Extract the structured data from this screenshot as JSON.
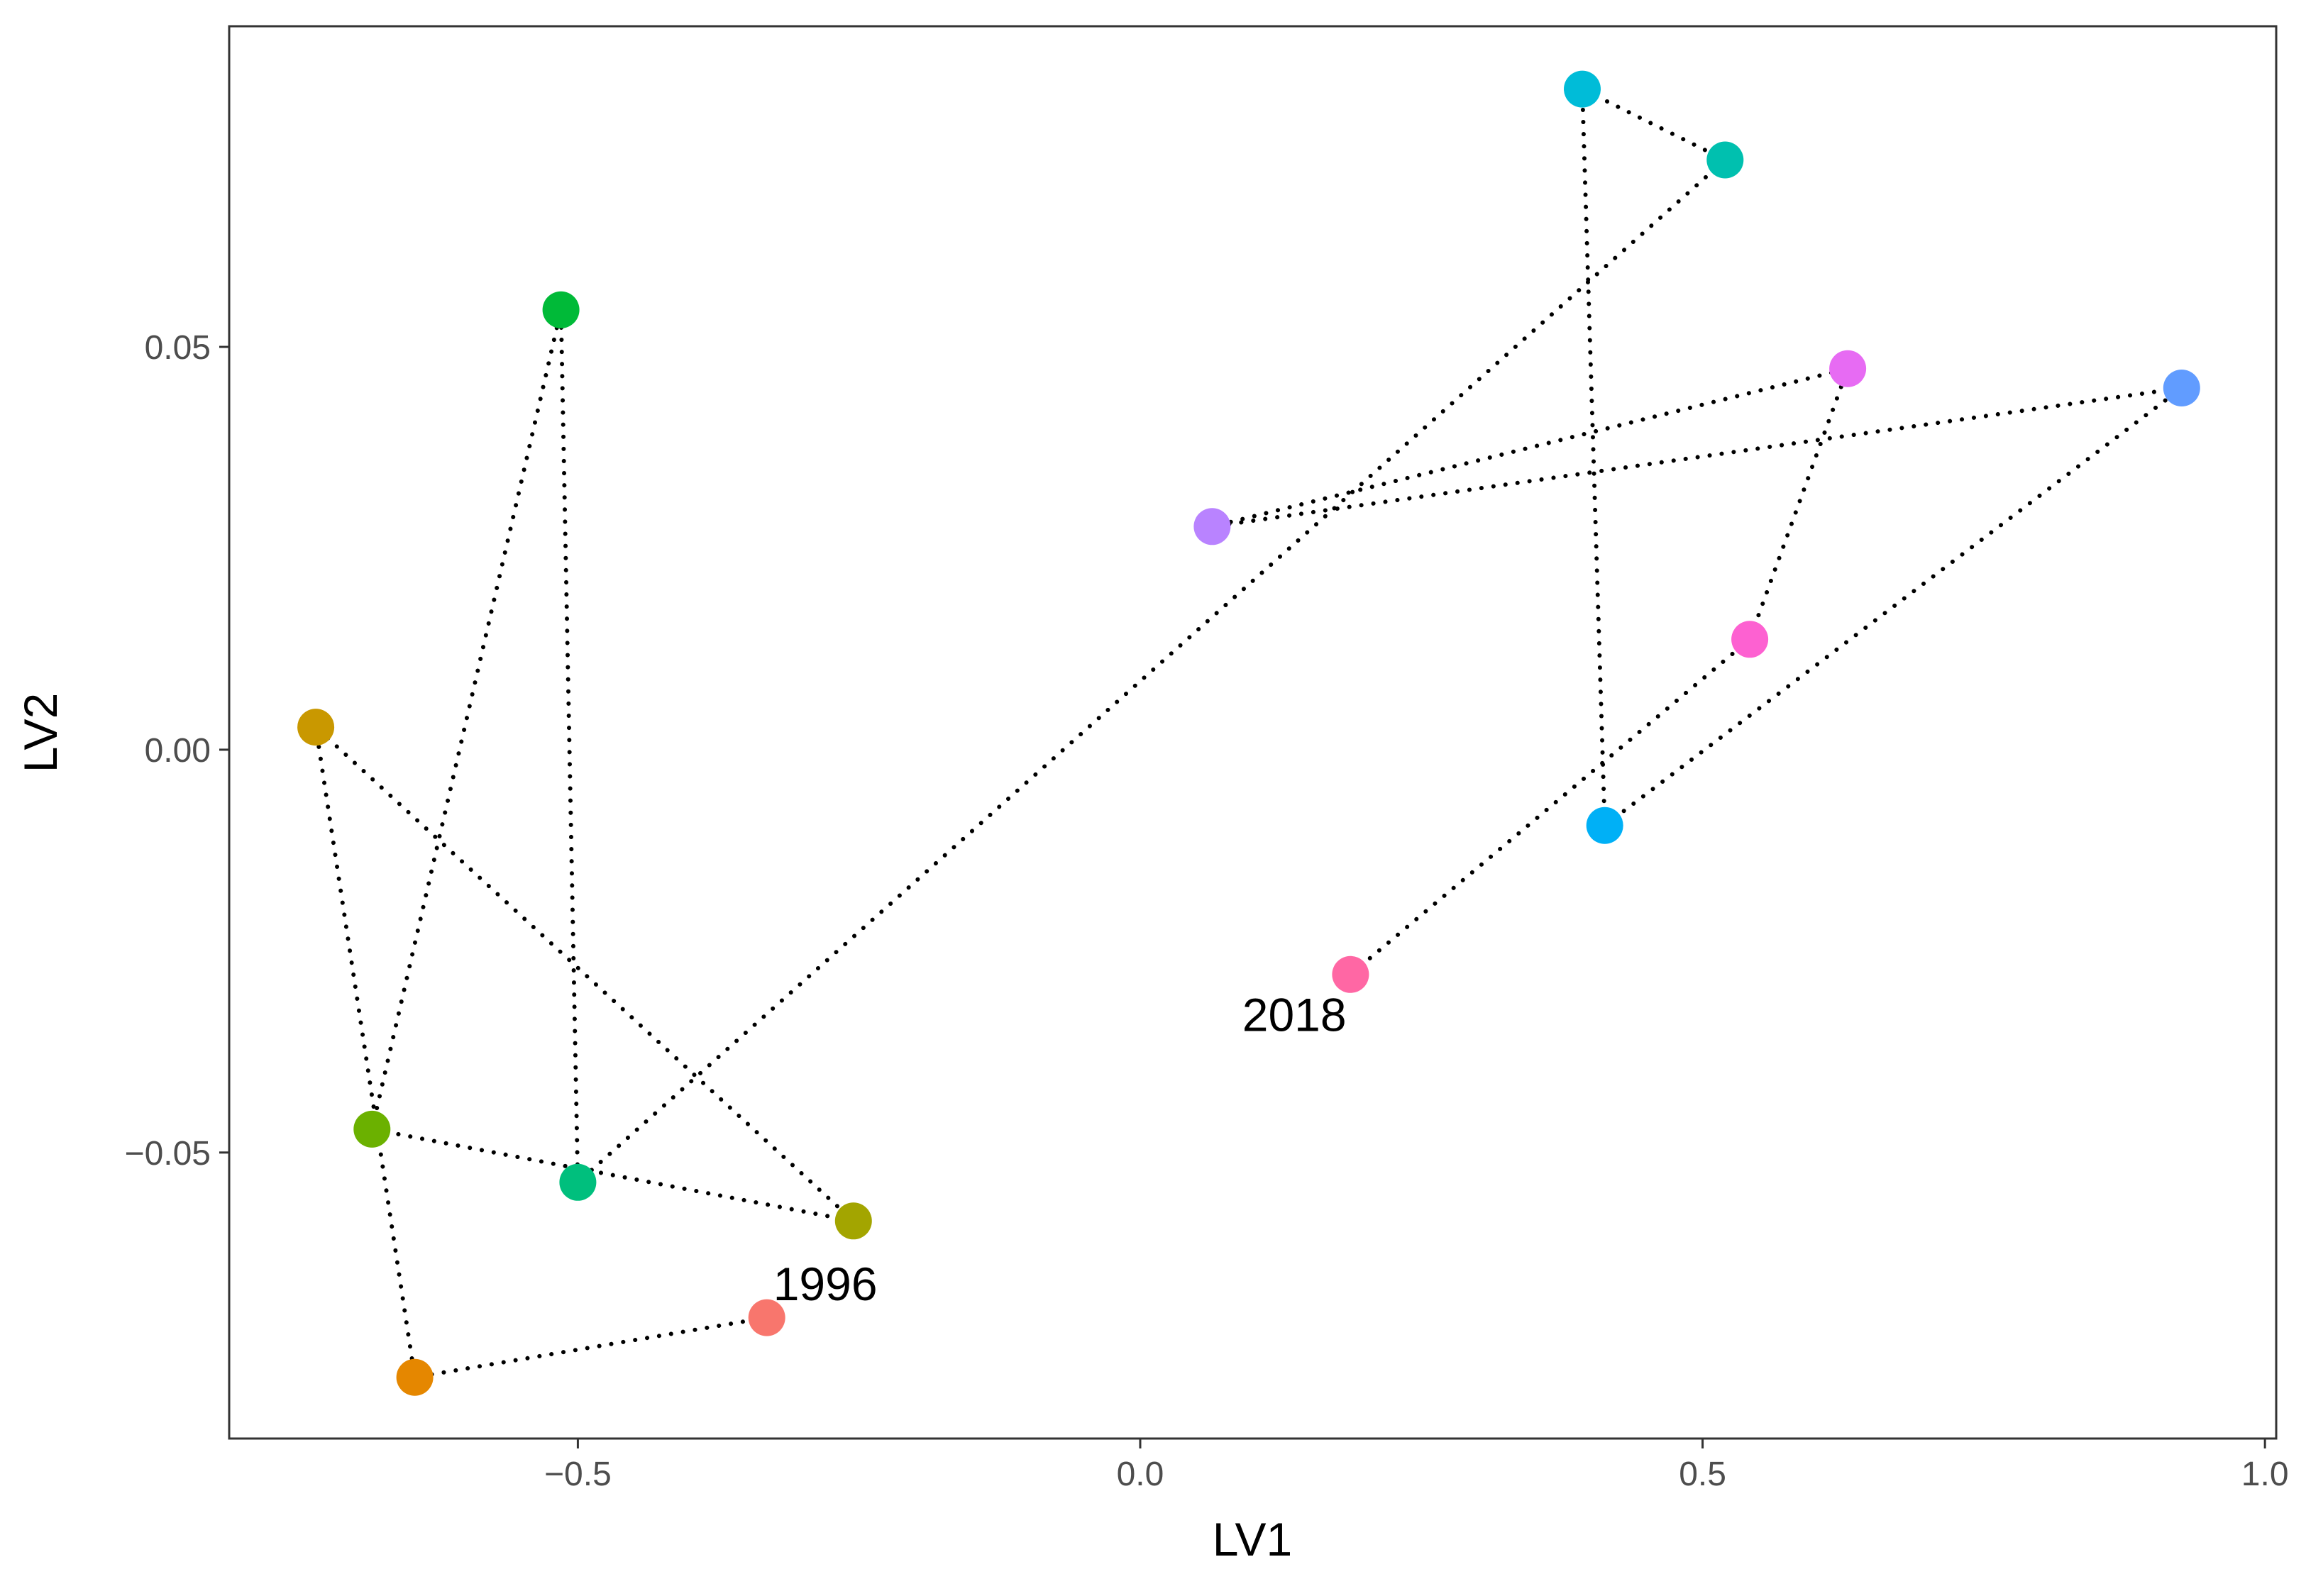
{
  "chart_data": {
    "type": "scatter",
    "title": "",
    "xlabel": "LV1",
    "ylabel": "LV2",
    "xlim": [
      -0.81,
      1.01
    ],
    "ylim": [
      -0.0855,
      0.0898
    ],
    "x_ticks": [
      -0.5,
      0.0,
      0.5,
      1.0
    ],
    "x_tick_labels": [
      "−0.5",
      "0.0",
      "0.5",
      "1.0"
    ],
    "y_ticks": [
      -0.05,
      0.0,
      0.05
    ],
    "y_tick_labels": [
      "−0.05",
      "0.00",
      "0.05"
    ],
    "grid": false,
    "legend": "none",
    "path_style": "dotted",
    "points": [
      {
        "x": -0.332,
        "y": -0.0705,
        "color": "#F8766D"
      },
      {
        "x": -0.645,
        "y": -0.0779,
        "color": "#E58700"
      },
      {
        "x": -0.733,
        "y": 0.0028,
        "color": "#C99800"
      },
      {
        "x": -0.255,
        "y": -0.0585,
        "color": "#A3A500"
      },
      {
        "x": -0.683,
        "y": -0.0471,
        "color": "#6BB100"
      },
      {
        "x": -0.515,
        "y": 0.0546,
        "color": "#00BA38"
      },
      {
        "x": -0.5,
        "y": -0.0537,
        "color": "#00BF7D"
      },
      {
        "x": 0.52,
        "y": 0.0732,
        "color": "#00C0AF"
      },
      {
        "x": 0.393,
        "y": 0.082,
        "color": "#00BCD8"
      },
      {
        "x": 0.413,
        "y": -0.0094,
        "color": "#00B0F6"
      },
      {
        "x": 0.926,
        "y": 0.0449,
        "color": "#619CFF"
      },
      {
        "x": 0.064,
        "y": 0.0277,
        "color": "#B983FF"
      },
      {
        "x": 0.629,
        "y": 0.0473,
        "color": "#E76BF3"
      },
      {
        "x": 0.542,
        "y": 0.0137,
        "color": "#FD61D1"
      },
      {
        "x": 0.187,
        "y": -0.0279,
        "color": "#FF67A4"
      }
    ],
    "annotations": [
      {
        "text": "1996",
        "x": -0.28,
        "y": -0.0662
      },
      {
        "text": "2018",
        "x": 0.137,
        "y": -0.0328
      }
    ]
  }
}
